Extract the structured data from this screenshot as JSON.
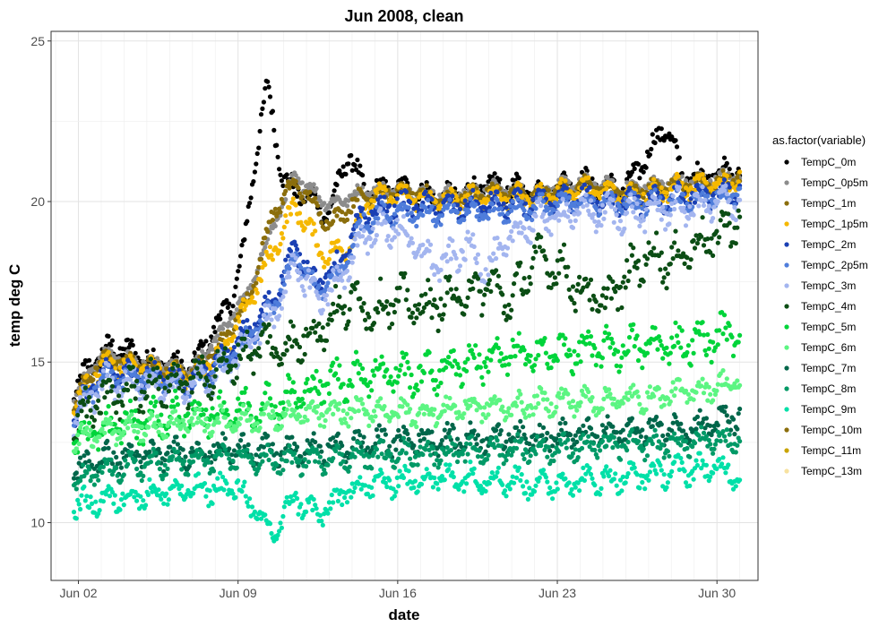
{
  "chart_data": {
    "type": "scatter",
    "title": "Jun 2008, clean",
    "xlabel": "date",
    "ylabel": "temp deg C",
    "x_ticks": [
      "Jun 02",
      "Jun 09",
      "Jun 16",
      "Jun 23",
      "Jun 30"
    ],
    "x_tick_values": [
      2,
      9,
      16,
      23,
      30
    ],
    "xlim": [
      0.8,
      31.8
    ],
    "ylim": [
      8.2,
      25.3
    ],
    "y_ticks": [
      10,
      15,
      20,
      25
    ],
    "grid": true,
    "legend_title": "as.factor(variable)",
    "legend_position": "right",
    "series": [
      {
        "name": "TempC_0m",
        "color": "#000000",
        "x": [
          1.8,
          2.5,
          3.5,
          5,
          7,
          8,
          8.7,
          9.2,
          9.8,
          10.3,
          11,
          12,
          13,
          13.8,
          14.6,
          16,
          18,
          20,
          22,
          24,
          26,
          27.8,
          28.5,
          30,
          31
        ],
        "y": [
          14.0,
          14.9,
          15.5,
          15.1,
          14.8,
          16.1,
          16.9,
          18.3,
          21.6,
          23.6,
          20.6,
          20.2,
          19.6,
          21.5,
          20.3,
          20.4,
          20.1,
          20.5,
          20.3,
          20.6,
          20.4,
          22.4,
          20.7,
          20.9,
          20.9
        ]
      },
      {
        "name": "TempC_0p5m",
        "color": "#8c8c8c",
        "x": [
          1.8,
          3,
          5,
          7,
          8.5,
          9.5,
          10.5,
          11.5,
          13,
          14.5,
          16,
          18,
          20,
          22,
          24,
          26,
          28,
          30,
          31
        ],
        "y": [
          13.9,
          15.2,
          15.0,
          14.7,
          16.2,
          17.2,
          19.2,
          20.8,
          19.9,
          20.3,
          20.4,
          20.2,
          20.4,
          20.3,
          20.6,
          20.4,
          20.6,
          20.7,
          20.8
        ]
      },
      {
        "name": "TempC_1m",
        "color": "#8b6e0c",
        "x": [
          1.8,
          3,
          5,
          7,
          8.5,
          9.5,
          10.5,
          11.5,
          13,
          14.5,
          16,
          18,
          20,
          22,
          24,
          26,
          28,
          30,
          31
        ],
        "y": [
          13.8,
          15.1,
          14.9,
          14.6,
          15.8,
          17.0,
          19.6,
          20.6,
          19.3,
          20.2,
          20.3,
          20.1,
          20.3,
          20.2,
          20.5,
          20.3,
          20.5,
          20.6,
          20.8
        ]
      },
      {
        "name": "TempC_1p5m",
        "color": "#f5b800",
        "x": [
          1.8,
          3,
          5,
          7,
          8.5,
          9.5,
          10.5,
          11.5,
          12.8,
          13.8,
          14.8,
          16,
          18,
          20,
          22,
          24,
          26,
          28,
          30,
          31
        ],
        "y": [
          13.6,
          14.9,
          14.8,
          14.5,
          15.5,
          16.9,
          18.4,
          19.9,
          18.3,
          18.6,
          20.1,
          20.2,
          20.0,
          20.2,
          20.1,
          20.4,
          20.2,
          20.4,
          20.5,
          20.7
        ]
      },
      {
        "name": "TempC_2m",
        "color": "#1a3fb3",
        "x": [
          1.8,
          3,
          5,
          7,
          8.5,
          9.5,
          10.5,
          11.5,
          12.5,
          13.5,
          14.5,
          16,
          18,
          20,
          22,
          24,
          26,
          28,
          30,
          31
        ],
        "y": [
          13.4,
          14.6,
          14.6,
          14.4,
          15.2,
          16.0,
          16.9,
          18.6,
          17.4,
          18.1,
          19.6,
          19.9,
          19.8,
          19.9,
          19.9,
          20.1,
          20.0,
          20.1,
          20.2,
          20.4
        ]
      },
      {
        "name": "TempC_2p5m",
        "color": "#4f7ddb",
        "x": [
          1.8,
          3,
          5,
          7,
          8.5,
          9.5,
          10.5,
          11.5,
          12.5,
          13.5,
          14.5,
          16,
          18,
          20,
          22,
          24,
          26,
          28,
          30,
          31
        ],
        "y": [
          13.3,
          14.5,
          14.5,
          14.3,
          15.0,
          15.8,
          16.6,
          18.3,
          17.2,
          17.8,
          19.4,
          19.7,
          19.6,
          19.7,
          19.8,
          20.0,
          19.9,
          20.0,
          20.1,
          20.3
        ]
      },
      {
        "name": "TempC_3m",
        "color": "#a3b5ef",
        "x": [
          1.8,
          3,
          5,
          7,
          8.5,
          9.5,
          10.5,
          11.5,
          12.5,
          13.5,
          14.5,
          16,
          17,
          18,
          19,
          20,
          21,
          22,
          24,
          26,
          28,
          30,
          31
        ],
        "y": [
          13.2,
          14.3,
          14.4,
          14.2,
          14.8,
          15.6,
          16.4,
          18.0,
          17.0,
          17.5,
          19.0,
          19.2,
          18.4,
          18.0,
          18.6,
          17.9,
          18.9,
          19.4,
          19.7,
          19.6,
          19.8,
          19.9,
          20.1
        ]
      },
      {
        "name": "TempC_4m",
        "color": "#0b4d14",
        "x": [
          1.8,
          3,
          5,
          7,
          8.5,
          10,
          11,
          12,
          13,
          14,
          15,
          16,
          17,
          18,
          19,
          20,
          21,
          22,
          23,
          24,
          25,
          26,
          27,
          28,
          29,
          30,
          31
        ],
        "y": [
          13.0,
          13.8,
          14.3,
          14.4,
          14.9,
          15.6,
          15.4,
          15.8,
          16.3,
          17.0,
          16.6,
          17.0,
          16.7,
          16.9,
          17.1,
          17.4,
          16.9,
          18.2,
          18.0,
          17.3,
          16.8,
          17.6,
          18.4,
          18.1,
          18.7,
          18.9,
          19.6
        ]
      },
      {
        "name": "TempC_5m",
        "color": "#00d43a",
        "x": [
          1.8,
          3,
          5,
          7,
          9,
          11,
          13,
          15,
          17,
          19,
          21,
          23,
          25,
          27,
          29,
          31
        ],
        "y": [
          12.5,
          12.9,
          13.2,
          13.4,
          13.5,
          13.8,
          14.4,
          14.7,
          14.6,
          15.0,
          15.2,
          15.3,
          15.4,
          15.5,
          15.6,
          16.0
        ]
      },
      {
        "name": "TempC_6m",
        "color": "#5cf582",
        "x": [
          1.8,
          3,
          5,
          7,
          9,
          11,
          13,
          15,
          17,
          19,
          21,
          23,
          25,
          27,
          29,
          31
        ],
        "y": [
          12.6,
          12.8,
          13.0,
          13.1,
          13.2,
          13.3,
          13.4,
          13.5,
          13.4,
          13.6,
          13.6,
          13.8,
          13.8,
          13.9,
          14.1,
          14.4
        ]
      },
      {
        "name": "TempC_7m",
        "color": "#00664a",
        "x": [
          1.8,
          3,
          5,
          7,
          9,
          11,
          13,
          15,
          17,
          19,
          21,
          23,
          25,
          27,
          29,
          31
        ],
        "y": [
          11.6,
          12.0,
          12.1,
          12.2,
          12.3,
          12.2,
          12.3,
          12.5,
          12.6,
          12.6,
          12.7,
          12.7,
          12.8,
          12.9,
          13.0,
          13.3
        ]
      },
      {
        "name": "TempC_8m",
        "color": "#009966",
        "x": [
          1.8,
          3,
          5,
          7,
          9,
          11,
          13,
          15,
          17,
          19,
          21,
          23,
          25,
          27,
          29,
          31
        ],
        "y": [
          11.2,
          11.6,
          11.8,
          11.9,
          12.0,
          11.9,
          12.0,
          12.1,
          12.2,
          12.2,
          12.3,
          12.3,
          12.4,
          12.4,
          12.5,
          12.6
        ]
      },
      {
        "name": "TempC_9m",
        "color": "#00e0a8",
        "x": [
          1.8,
          3,
          5,
          7,
          9,
          10.5,
          11.5,
          12.5,
          14,
          16,
          18,
          20,
          22,
          24,
          26,
          28,
          30,
          31
        ],
        "y": [
          10.5,
          10.7,
          10.9,
          11.0,
          11.1,
          9.6,
          10.8,
          10.2,
          11.1,
          11.3,
          11.4,
          11.4,
          11.2,
          11.3,
          11.4,
          11.6,
          11.7,
          11.5
        ]
      },
      {
        "name": "TempC_10m",
        "color": "#8b6e0c",
        "x": [],
        "y": []
      },
      {
        "name": "TempC_11m",
        "color": "#c9a400",
        "x": [],
        "y": []
      },
      {
        "name": "TempC_13m",
        "color": "#f7e2a0",
        "x": [],
        "y": []
      }
    ]
  }
}
